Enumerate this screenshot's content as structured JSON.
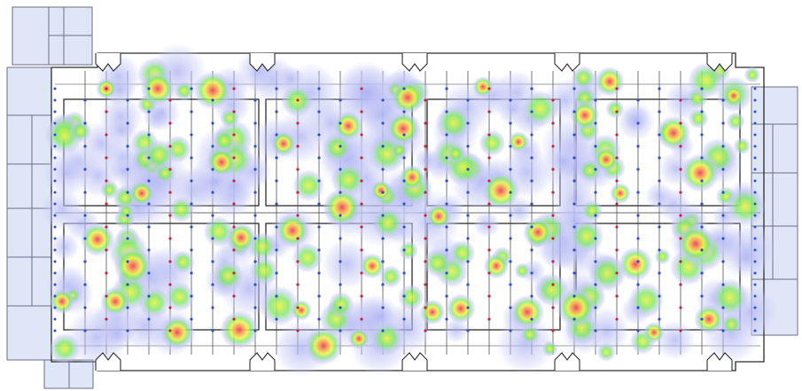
{
  "colors": {
    "background": "#ffffff",
    "annex_fill": "#dfe6f8",
    "wall_stroke": "#2b2b2b",
    "dot_blue": "#2c4fd6",
    "dot_red": "#c8243c",
    "heat_low": "#c3c6f5",
    "heat_mid_low": "#7fe86a",
    "heat_mid": "#eef24a",
    "heat_high": "#f7a35c",
    "heat_peak": "#ee4a66"
  },
  "plan": {
    "annexes": [
      "north-west-office-block",
      "west-office-block",
      "east-office-block",
      "south-west-office-block"
    ],
    "dock_doors_top": 5,
    "dock_doors_bottom": 5,
    "aisle_groups": 4
  },
  "heatmap": {
    "scale": [
      "low",
      "medium-low",
      "medium",
      "high",
      "peak"
    ]
  }
}
